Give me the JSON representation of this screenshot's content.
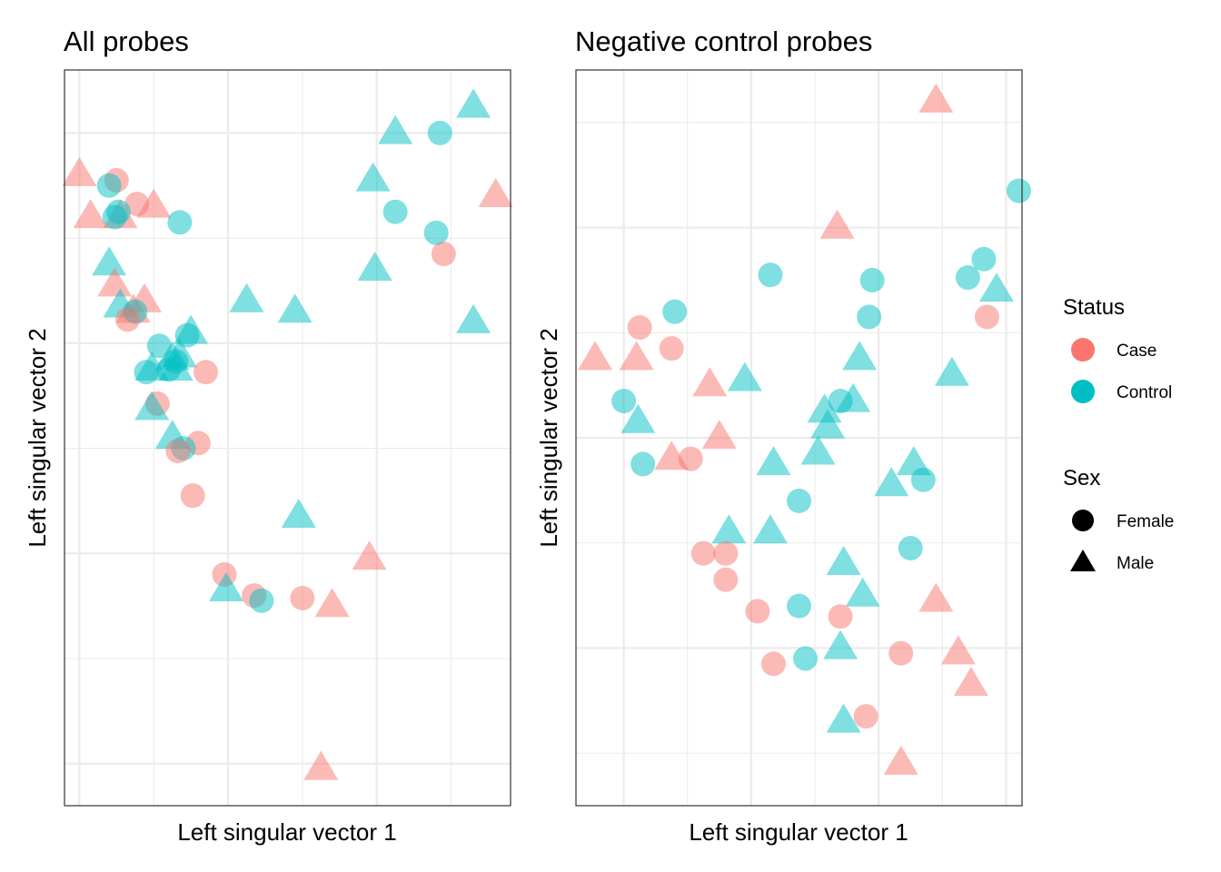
{
  "colors": {
    "case": "#F8766D",
    "control": "#00BFC4"
  },
  "legend": {
    "status_title": "Status",
    "status_items": [
      {
        "label": "Case",
        "key": "case"
      },
      {
        "label": "Control",
        "key": "control"
      }
    ],
    "sex_title": "Sex",
    "sex_items": [
      {
        "label": "Female",
        "shape": "circle"
      },
      {
        "label": "Male",
        "shape": "triangle"
      }
    ]
  },
  "chart_data": [
    {
      "type": "scatter",
      "title": "All probes",
      "xlabel": "Left singular vector 1",
      "ylabel": "Left singular vector 2",
      "xlim": [
        0,
        12
      ],
      "ylim": [
        0,
        14
      ],
      "x_grid_major": [
        0.4,
        4.4,
        8.4
      ],
      "x_grid_minor": [
        2.4,
        6.4,
        10.4
      ],
      "y_grid_major": [
        0.8,
        4.8,
        8.8,
        12.8
      ],
      "y_grid_minor": [
        2.8,
        6.8,
        10.8
      ],
      "grid": true,
      "points": [
        {
          "x": 0.4,
          "y": 12.0,
          "status": "Case",
          "sex": "Male"
        },
        {
          "x": 1.4,
          "y": 11.9,
          "status": "Case",
          "sex": "Female"
        },
        {
          "x": 1.2,
          "y": 11.8,
          "status": "Control",
          "sex": "Female"
        },
        {
          "x": 2.4,
          "y": 11.4,
          "status": "Case",
          "sex": "Male"
        },
        {
          "x": 1.95,
          "y": 11.45,
          "status": "Case",
          "sex": "Female"
        },
        {
          "x": 0.7,
          "y": 11.2,
          "status": "Case",
          "sex": "Male"
        },
        {
          "x": 1.5,
          "y": 11.2,
          "status": "Case",
          "sex": "Male"
        },
        {
          "x": 1.45,
          "y": 11.3,
          "status": "Control",
          "sex": "Female"
        },
        {
          "x": 1.35,
          "y": 11.2,
          "status": "Control",
          "sex": "Female"
        },
        {
          "x": 3.1,
          "y": 11.1,
          "status": "Control",
          "sex": "Female"
        },
        {
          "x": 1.2,
          "y": 10.3,
          "status": "Control",
          "sex": "Male"
        },
        {
          "x": 1.35,
          "y": 9.9,
          "status": "Case",
          "sex": "Male"
        },
        {
          "x": 2.15,
          "y": 9.6,
          "status": "Case",
          "sex": "Male"
        },
        {
          "x": 1.5,
          "y": 9.5,
          "status": "Control",
          "sex": "Male"
        },
        {
          "x": 1.85,
          "y": 9.4,
          "status": "Case",
          "sex": "Male"
        },
        {
          "x": 1.9,
          "y": 9.4,
          "status": "Control",
          "sex": "Female"
        },
        {
          "x": 1.7,
          "y": 9.25,
          "status": "Case",
          "sex": "Female"
        },
        {
          "x": 3.4,
          "y": 9.0,
          "status": "Control",
          "sex": "Male"
        },
        {
          "x": 3.3,
          "y": 8.95,
          "status": "Control",
          "sex": "Female"
        },
        {
          "x": 2.55,
          "y": 8.75,
          "status": "Control",
          "sex": "Female"
        },
        {
          "x": 2.9,
          "y": 8.5,
          "status": "Control",
          "sex": "Male"
        },
        {
          "x": 3.1,
          "y": 8.55,
          "status": "Control",
          "sex": "Male"
        },
        {
          "x": 3.0,
          "y": 8.45,
          "status": "Control",
          "sex": "Female"
        },
        {
          "x": 2.35,
          "y": 8.3,
          "status": "Control",
          "sex": "Male"
        },
        {
          "x": 2.8,
          "y": 8.3,
          "status": "Control",
          "sex": "Female"
        },
        {
          "x": 2.2,
          "y": 8.25,
          "status": "Control",
          "sex": "Female"
        },
        {
          "x": 3.0,
          "y": 8.3,
          "status": "Control",
          "sex": "Male"
        },
        {
          "x": 3.8,
          "y": 8.25,
          "status": "Case",
          "sex": "Female"
        },
        {
          "x": 2.5,
          "y": 7.65,
          "status": "Case",
          "sex": "Female"
        },
        {
          "x": 2.35,
          "y": 7.55,
          "status": "Control",
          "sex": "Male"
        },
        {
          "x": 2.9,
          "y": 7.0,
          "status": "Control",
          "sex": "Male"
        },
        {
          "x": 3.6,
          "y": 6.9,
          "status": "Case",
          "sex": "Female"
        },
        {
          "x": 3.2,
          "y": 6.8,
          "status": "Control",
          "sex": "Female"
        },
        {
          "x": 3.05,
          "y": 6.75,
          "status": "Case",
          "sex": "Female"
        },
        {
          "x": 3.45,
          "y": 5.9,
          "status": "Case",
          "sex": "Female"
        },
        {
          "x": 4.9,
          "y": 9.6,
          "status": "Control",
          "sex": "Male"
        },
        {
          "x": 6.2,
          "y": 9.4,
          "status": "Control",
          "sex": "Male"
        },
        {
          "x": 6.3,
          "y": 5.5,
          "status": "Control",
          "sex": "Male"
        },
        {
          "x": 4.3,
          "y": 4.4,
          "status": "Case",
          "sex": "Female"
        },
        {
          "x": 4.35,
          "y": 4.1,
          "status": "Control",
          "sex": "Male"
        },
        {
          "x": 5.1,
          "y": 4.0,
          "status": "Case",
          "sex": "Female"
        },
        {
          "x": 5.3,
          "y": 3.9,
          "status": "Control",
          "sex": "Female"
        },
        {
          "x": 6.4,
          "y": 3.95,
          "status": "Case",
          "sex": "Female"
        },
        {
          "x": 7.2,
          "y": 3.8,
          "status": "Case",
          "sex": "Male"
        },
        {
          "x": 8.2,
          "y": 4.7,
          "status": "Case",
          "sex": "Male"
        },
        {
          "x": 6.9,
          "y": 0.7,
          "status": "Case",
          "sex": "Male"
        },
        {
          "x": 8.3,
          "y": 11.9,
          "status": "Control",
          "sex": "Male"
        },
        {
          "x": 8.9,
          "y": 11.3,
          "status": "Control",
          "sex": "Female"
        },
        {
          "x": 8.35,
          "y": 10.2,
          "status": "Control",
          "sex": "Male"
        },
        {
          "x": 8.9,
          "y": 12.8,
          "status": "Control",
          "sex": "Male"
        },
        {
          "x": 10.1,
          "y": 12.8,
          "status": "Control",
          "sex": "Female"
        },
        {
          "x": 11.0,
          "y": 13.3,
          "status": "Control",
          "sex": "Male"
        },
        {
          "x": 10.0,
          "y": 10.9,
          "status": "Control",
          "sex": "Female"
        },
        {
          "x": 10.2,
          "y": 10.5,
          "status": "Case",
          "sex": "Female"
        },
        {
          "x": 11.6,
          "y": 11.6,
          "status": "Case",
          "sex": "Male"
        },
        {
          "x": 11.0,
          "y": 9.2,
          "status": "Control",
          "sex": "Male"
        }
      ]
    },
    {
      "type": "scatter",
      "title": "Negative control probes",
      "xlabel": "Left singular vector 1",
      "ylabel": "Left singular vector 2",
      "xlim": [
        0,
        14
      ],
      "ylim": [
        0,
        14
      ],
      "x_grid_major": [
        1.5,
        5.5,
        9.5,
        13.5
      ],
      "x_grid_minor": [
        3.5,
        7.5,
        11.5
      ],
      "y_grid_major": [
        3.0,
        7.0,
        11.0
      ],
      "y_grid_minor": [
        1.0,
        5.0,
        9.0,
        13.0
      ],
      "grid": true,
      "points": [
        {
          "x": 11.3,
          "y": 13.4,
          "status": "Case",
          "sex": "Male"
        },
        {
          "x": 13.9,
          "y": 11.7,
          "status": "Control",
          "sex": "Female"
        },
        {
          "x": 8.2,
          "y": 11.0,
          "status": "Case",
          "sex": "Male"
        },
        {
          "x": 12.8,
          "y": 10.4,
          "status": "Control",
          "sex": "Female"
        },
        {
          "x": 12.3,
          "y": 10.05,
          "status": "Control",
          "sex": "Female"
        },
        {
          "x": 13.2,
          "y": 9.8,
          "status": "Control",
          "sex": "Male"
        },
        {
          "x": 6.1,
          "y": 10.1,
          "status": "Control",
          "sex": "Female"
        },
        {
          "x": 9.3,
          "y": 10.0,
          "status": "Control",
          "sex": "Female"
        },
        {
          "x": 12.9,
          "y": 9.3,
          "status": "Case",
          "sex": "Female"
        },
        {
          "x": 9.2,
          "y": 9.3,
          "status": "Control",
          "sex": "Female"
        },
        {
          "x": 3.1,
          "y": 9.4,
          "status": "Control",
          "sex": "Female"
        },
        {
          "x": 2.0,
          "y": 9.1,
          "status": "Case",
          "sex": "Female"
        },
        {
          "x": 3.0,
          "y": 8.7,
          "status": "Case",
          "sex": "Female"
        },
        {
          "x": 0.6,
          "y": 8.5,
          "status": "Case",
          "sex": "Male"
        },
        {
          "x": 1.9,
          "y": 8.5,
          "status": "Case",
          "sex": "Male"
        },
        {
          "x": 8.9,
          "y": 8.5,
          "status": "Control",
          "sex": "Male"
        },
        {
          "x": 11.8,
          "y": 8.2,
          "status": "Control",
          "sex": "Male"
        },
        {
          "x": 4.2,
          "y": 8.0,
          "status": "Case",
          "sex": "Male"
        },
        {
          "x": 5.3,
          "y": 8.1,
          "status": "Control",
          "sex": "Male"
        },
        {
          "x": 1.5,
          "y": 7.7,
          "status": "Control",
          "sex": "Female"
        },
        {
          "x": 1.95,
          "y": 7.3,
          "status": "Control",
          "sex": "Male"
        },
        {
          "x": 8.7,
          "y": 7.7,
          "status": "Control",
          "sex": "Male"
        },
        {
          "x": 8.3,
          "y": 7.7,
          "status": "Control",
          "sex": "Female"
        },
        {
          "x": 7.8,
          "y": 7.5,
          "status": "Control",
          "sex": "Male"
        },
        {
          "x": 7.9,
          "y": 7.2,
          "status": "Control",
          "sex": "Male"
        },
        {
          "x": 4.5,
          "y": 7.0,
          "status": "Case",
          "sex": "Male"
        },
        {
          "x": 7.6,
          "y": 6.7,
          "status": "Control",
          "sex": "Male"
        },
        {
          "x": 6.2,
          "y": 6.5,
          "status": "Control",
          "sex": "Male"
        },
        {
          "x": 3.0,
          "y": 6.6,
          "status": "Case",
          "sex": "Male"
        },
        {
          "x": 3.6,
          "y": 6.6,
          "status": "Case",
          "sex": "Female"
        },
        {
          "x": 2.1,
          "y": 6.5,
          "status": "Control",
          "sex": "Female"
        },
        {
          "x": 10.6,
          "y": 6.5,
          "status": "Control",
          "sex": "Male"
        },
        {
          "x": 9.9,
          "y": 6.1,
          "status": "Control",
          "sex": "Male"
        },
        {
          "x": 10.9,
          "y": 6.2,
          "status": "Control",
          "sex": "Female"
        },
        {
          "x": 7.0,
          "y": 5.8,
          "status": "Control",
          "sex": "Female"
        },
        {
          "x": 4.8,
          "y": 5.2,
          "status": "Control",
          "sex": "Male"
        },
        {
          "x": 6.1,
          "y": 5.2,
          "status": "Control",
          "sex": "Male"
        },
        {
          "x": 8.4,
          "y": 4.6,
          "status": "Control",
          "sex": "Male"
        },
        {
          "x": 4.0,
          "y": 4.8,
          "status": "Case",
          "sex": "Female"
        },
        {
          "x": 4.7,
          "y": 4.8,
          "status": "Case",
          "sex": "Female"
        },
        {
          "x": 10.5,
          "y": 4.9,
          "status": "Control",
          "sex": "Female"
        },
        {
          "x": 9.0,
          "y": 4.0,
          "status": "Control",
          "sex": "Male"
        },
        {
          "x": 11.3,
          "y": 3.9,
          "status": "Case",
          "sex": "Male"
        },
        {
          "x": 4.7,
          "y": 4.3,
          "status": "Case",
          "sex": "Female"
        },
        {
          "x": 7.0,
          "y": 3.8,
          "status": "Control",
          "sex": "Female"
        },
        {
          "x": 5.7,
          "y": 3.7,
          "status": "Case",
          "sex": "Female"
        },
        {
          "x": 8.3,
          "y": 3.6,
          "status": "Case",
          "sex": "Female"
        },
        {
          "x": 8.3,
          "y": 3.0,
          "status": "Control",
          "sex": "Male"
        },
        {
          "x": 10.2,
          "y": 2.9,
          "status": "Case",
          "sex": "Female"
        },
        {
          "x": 12.0,
          "y": 2.9,
          "status": "Case",
          "sex": "Male"
        },
        {
          "x": 6.2,
          "y": 2.7,
          "status": "Case",
          "sex": "Female"
        },
        {
          "x": 7.2,
          "y": 2.8,
          "status": "Control",
          "sex": "Female"
        },
        {
          "x": 12.4,
          "y": 2.3,
          "status": "Case",
          "sex": "Male"
        },
        {
          "x": 9.1,
          "y": 1.7,
          "status": "Case",
          "sex": "Female"
        },
        {
          "x": 8.4,
          "y": 1.6,
          "status": "Control",
          "sex": "Male"
        },
        {
          "x": 10.2,
          "y": 0.8,
          "status": "Case",
          "sex": "Male"
        }
      ]
    }
  ]
}
